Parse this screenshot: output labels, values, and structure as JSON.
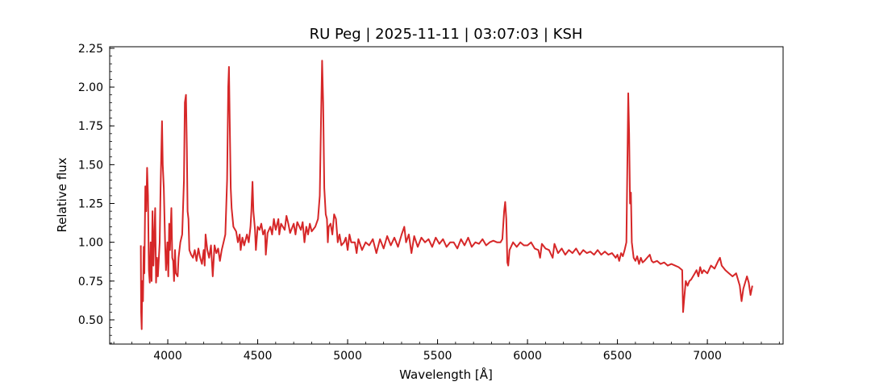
{
  "chart_data": {
    "type": "line",
    "title": "RU Peg | 2025-11-11 | 03:07:03 | KSH",
    "xlabel": "Wavelength [Å]",
    "ylabel": "Relative flux",
    "xlim": [
      3677,
      7421
    ],
    "ylim": [
      0.344,
      2.26
    ],
    "xticks": [
      4000,
      4500,
      5000,
      5500,
      6000,
      6500,
      7000
    ],
    "xtick_labels": [
      "4000",
      "4500",
      "5000",
      "5500",
      "6000",
      "6500",
      "7000"
    ],
    "yticks": [
      0.5,
      0.75,
      1.0,
      1.25,
      1.5,
      1.75,
      2.0,
      2.25
    ],
    "ytick_labels": [
      "0.50",
      "0.75",
      "1.00",
      "1.25",
      "1.50",
      "1.75",
      "2.00",
      "2.25"
    ],
    "x_minor_step": 100,
    "y_minor_step": 0.05,
    "grid": false,
    "line_color": "#d62728",
    "series": [
      {
        "points": [
          [
            3850,
            0.98
          ],
          [
            3852,
            0.55
          ],
          [
            3855,
            0.44
          ],
          [
            3858,
            0.75
          ],
          [
            3862,
            0.62
          ],
          [
            3866,
            0.97
          ],
          [
            3870,
            0.8
          ],
          [
            3875,
            1.36
          ],
          [
            3880,
            1.2
          ],
          [
            3885,
            1.48
          ],
          [
            3890,
            1.3
          ],
          [
            3895,
            0.82
          ],
          [
            3900,
            0.74
          ],
          [
            3905,
            1.0
          ],
          [
            3910,
            0.75
          ],
          [
            3915,
            1.2
          ],
          [
            3920,
            0.85
          ],
          [
            3930,
            1.22
          ],
          [
            3935,
            0.74
          ],
          [
            3940,
            0.9
          ],
          [
            3945,
            0.78
          ],
          [
            3955,
            1.0
          ],
          [
            3960,
            1.35
          ],
          [
            3968,
            1.78
          ],
          [
            3972,
            1.5
          ],
          [
            3978,
            1.35
          ],
          [
            3985,
            1.0
          ],
          [
            3990,
            0.82
          ],
          [
            3998,
            1.0
          ],
          [
            4003,
            0.78
          ],
          [
            4008,
            1.12
          ],
          [
            4012,
            0.95
          ],
          [
            4020,
            1.22
          ],
          [
            4025,
            0.9
          ],
          [
            4030,
            0.88
          ],
          [
            4035,
            0.75
          ],
          [
            4040,
            0.95
          ],
          [
            4045,
            0.8
          ],
          [
            4055,
            0.78
          ],
          [
            4060,
            0.9
          ],
          [
            4070,
            1.0
          ],
          [
            4080,
            1.05
          ],
          [
            4090,
            1.4
          ],
          [
            4095,
            1.9
          ],
          [
            4101,
            1.95
          ],
          [
            4106,
            1.6
          ],
          [
            4110,
            1.2
          ],
          [
            4115,
            1.15
          ],
          [
            4120,
            0.95
          ],
          [
            4130,
            0.92
          ],
          [
            4140,
            0.9
          ],
          [
            4150,
            0.95
          ],
          [
            4160,
            0.88
          ],
          [
            4170,
            0.96
          ],
          [
            4180,
            0.9
          ],
          [
            4190,
            0.86
          ],
          [
            4200,
            0.95
          ],
          [
            4205,
            0.85
          ],
          [
            4210,
            1.05
          ],
          [
            4220,
            0.95
          ],
          [
            4230,
            0.9
          ],
          [
            4240,
            0.98
          ],
          [
            4250,
            0.78
          ],
          [
            4260,
            0.98
          ],
          [
            4270,
            0.93
          ],
          [
            4280,
            0.96
          ],
          [
            4290,
            0.88
          ],
          [
            4300,
            0.95
          ],
          [
            4310,
            1.0
          ],
          [
            4320,
            1.05
          ],
          [
            4330,
            1.4
          ],
          [
            4336,
            2.0
          ],
          [
            4340,
            2.13
          ],
          [
            4344,
            1.8
          ],
          [
            4350,
            1.35
          ],
          [
            4355,
            1.22
          ],
          [
            4365,
            1.1
          ],
          [
            4380,
            1.07
          ],
          [
            4390,
            1.0
          ],
          [
            4400,
            1.05
          ],
          [
            4405,
            0.95
          ],
          [
            4415,
            1.03
          ],
          [
            4425,
            0.98
          ],
          [
            4440,
            1.05
          ],
          [
            4450,
            1.0
          ],
          [
            4460,
            1.1
          ],
          [
            4465,
            1.2
          ],
          [
            4471,
            1.39
          ],
          [
            4476,
            1.2
          ],
          [
            4485,
            1.08
          ],
          [
            4490,
            0.95
          ],
          [
            4500,
            1.1
          ],
          [
            4510,
            1.08
          ],
          [
            4520,
            1.12
          ],
          [
            4530,
            1.05
          ],
          [
            4540,
            1.08
          ],
          [
            4545,
            0.92
          ],
          [
            4555,
            1.06
          ],
          [
            4570,
            1.1
          ],
          [
            4580,
            1.05
          ],
          [
            4590,
            1.15
          ],
          [
            4600,
            1.08
          ],
          [
            4615,
            1.15
          ],
          [
            4620,
            1.05
          ],
          [
            4630,
            1.12
          ],
          [
            4650,
            1.08
          ],
          [
            4660,
            1.17
          ],
          [
            4670,
            1.12
          ],
          [
            4680,
            1.06
          ],
          [
            4700,
            1.12
          ],
          [
            4710,
            1.05
          ],
          [
            4720,
            1.13
          ],
          [
            4740,
            1.08
          ],
          [
            4750,
            1.13
          ],
          [
            4760,
            1.0
          ],
          [
            4770,
            1.1
          ],
          [
            4780,
            1.05
          ],
          [
            4790,
            1.12
          ],
          [
            4800,
            1.07
          ],
          [
            4820,
            1.1
          ],
          [
            4835,
            1.15
          ],
          [
            4845,
            1.3
          ],
          [
            4852,
            1.8
          ],
          [
            4858,
            2.17
          ],
          [
            4864,
            1.9
          ],
          [
            4870,
            1.35
          ],
          [
            4878,
            1.18
          ],
          [
            4885,
            1.15
          ],
          [
            4890,
            1.0
          ],
          [
            4895,
            1.1
          ],
          [
            4905,
            1.12
          ],
          [
            4915,
            1.05
          ],
          [
            4925,
            1.18
          ],
          [
            4935,
            1.15
          ],
          [
            4945,
            1.0
          ],
          [
            4955,
            1.05
          ],
          [
            4965,
            0.98
          ],
          [
            4980,
            1.0
          ],
          [
            4990,
            1.03
          ],
          [
            5000,
            0.95
          ],
          [
            5010,
            1.05
          ],
          [
            5020,
            1.0
          ],
          [
            5040,
            1.0
          ],
          [
            5050,
            0.93
          ],
          [
            5060,
            1.02
          ],
          [
            5080,
            0.95
          ],
          [
            5100,
            1.0
          ],
          [
            5120,
            0.98
          ],
          [
            5140,
            1.02
          ],
          [
            5160,
            0.93
          ],
          [
            5180,
            1.02
          ],
          [
            5200,
            0.96
          ],
          [
            5220,
            1.04
          ],
          [
            5240,
            0.98
          ],
          [
            5260,
            1.03
          ],
          [
            5280,
            0.97
          ],
          [
            5300,
            1.05
          ],
          [
            5315,
            1.1
          ],
          [
            5325,
            1.0
          ],
          [
            5340,
            1.05
          ],
          [
            5355,
            0.93
          ],
          [
            5370,
            1.04
          ],
          [
            5390,
            0.97
          ],
          [
            5410,
            1.03
          ],
          [
            5430,
            1.0
          ],
          [
            5450,
            1.02
          ],
          [
            5470,
            0.97
          ],
          [
            5490,
            1.03
          ],
          [
            5510,
            0.99
          ],
          [
            5530,
            1.02
          ],
          [
            5550,
            0.97
          ],
          [
            5570,
            1.0
          ],
          [
            5590,
            1.0
          ],
          [
            5610,
            0.96
          ],
          [
            5630,
            1.02
          ],
          [
            5650,
            0.98
          ],
          [
            5670,
            1.03
          ],
          [
            5690,
            0.97
          ],
          [
            5710,
            1.0
          ],
          [
            5730,
            0.99
          ],
          [
            5750,
            1.02
          ],
          [
            5770,
            0.98
          ],
          [
            5790,
            1.0
          ],
          [
            5810,
            1.01
          ],
          [
            5830,
            1.0
          ],
          [
            5850,
            1.0
          ],
          [
            5860,
            1.02
          ],
          [
            5870,
            1.2
          ],
          [
            5876,
            1.26
          ],
          [
            5882,
            1.15
          ],
          [
            5888,
            0.87
          ],
          [
            5893,
            0.85
          ],
          [
            5900,
            0.95
          ],
          [
            5920,
            1.0
          ],
          [
            5940,
            0.97
          ],
          [
            5960,
            1.0
          ],
          [
            5980,
            0.98
          ],
          [
            6000,
            0.98
          ],
          [
            6020,
            1.0
          ],
          [
            6040,
            0.96
          ],
          [
            6060,
            0.95
          ],
          [
            6070,
            0.9
          ],
          [
            6080,
            0.99
          ],
          [
            6100,
            0.96
          ],
          [
            6120,
            0.95
          ],
          [
            6140,
            0.9
          ],
          [
            6150,
            0.99
          ],
          [
            6170,
            0.93
          ],
          [
            6190,
            0.96
          ],
          [
            6210,
            0.92
          ],
          [
            6230,
            0.95
          ],
          [
            6250,
            0.93
          ],
          [
            6270,
            0.96
          ],
          [
            6290,
            0.92
          ],
          [
            6310,
            0.95
          ],
          [
            6330,
            0.93
          ],
          [
            6350,
            0.94
          ],
          [
            6370,
            0.92
          ],
          [
            6390,
            0.95
          ],
          [
            6410,
            0.92
          ],
          [
            6430,
            0.94
          ],
          [
            6450,
            0.92
          ],
          [
            6470,
            0.93
          ],
          [
            6490,
            0.9
          ],
          [
            6500,
            0.92
          ],
          [
            6510,
            0.88
          ],
          [
            6520,
            0.93
          ],
          [
            6530,
            0.91
          ],
          [
            6540,
            0.95
          ],
          [
            6550,
            1.0
          ],
          [
            6555,
            1.5
          ],
          [
            6560,
            1.96
          ],
          [
            6565,
            1.7
          ],
          [
            6570,
            1.25
          ],
          [
            6575,
            1.32
          ],
          [
            6580,
            1.0
          ],
          [
            6590,
            0.9
          ],
          [
            6600,
            0.88
          ],
          [
            6610,
            0.91
          ],
          [
            6620,
            0.86
          ],
          [
            6630,
            0.9
          ],
          [
            6640,
            0.87
          ],
          [
            6650,
            0.88
          ],
          [
            6665,
            0.9
          ],
          [
            6680,
            0.92
          ],
          [
            6690,
            0.88
          ],
          [
            6700,
            0.87
          ],
          [
            6720,
            0.88
          ],
          [
            6740,
            0.86
          ],
          [
            6760,
            0.87
          ],
          [
            6780,
            0.85
          ],
          [
            6800,
            0.86
          ],
          [
            6820,
            0.85
          ],
          [
            6840,
            0.84
          ],
          [
            6850,
            0.83
          ],
          [
            6860,
            0.82
          ],
          [
            6865,
            0.55
          ],
          [
            6870,
            0.62
          ],
          [
            6880,
            0.75
          ],
          [
            6890,
            0.72
          ],
          [
            6900,
            0.75
          ],
          [
            6910,
            0.76
          ],
          [
            6920,
            0.78
          ],
          [
            6930,
            0.8
          ],
          [
            6940,
            0.82
          ],
          [
            6950,
            0.78
          ],
          [
            6960,
            0.84
          ],
          [
            6970,
            0.8
          ],
          [
            6980,
            0.82
          ],
          [
            7000,
            0.8
          ],
          [
            7020,
            0.85
          ],
          [
            7040,
            0.83
          ],
          [
            7060,
            0.88
          ],
          [
            7070,
            0.9
          ],
          [
            7080,
            0.85
          ],
          [
            7100,
            0.82
          ],
          [
            7120,
            0.8
          ],
          [
            7140,
            0.78
          ],
          [
            7160,
            0.8
          ],
          [
            7180,
            0.72
          ],
          [
            7190,
            0.62
          ],
          [
            7200,
            0.7
          ],
          [
            7220,
            0.78
          ],
          [
            7230,
            0.74
          ],
          [
            7240,
            0.66
          ],
          [
            7250,
            0.72
          ]
        ]
      }
    ]
  }
}
